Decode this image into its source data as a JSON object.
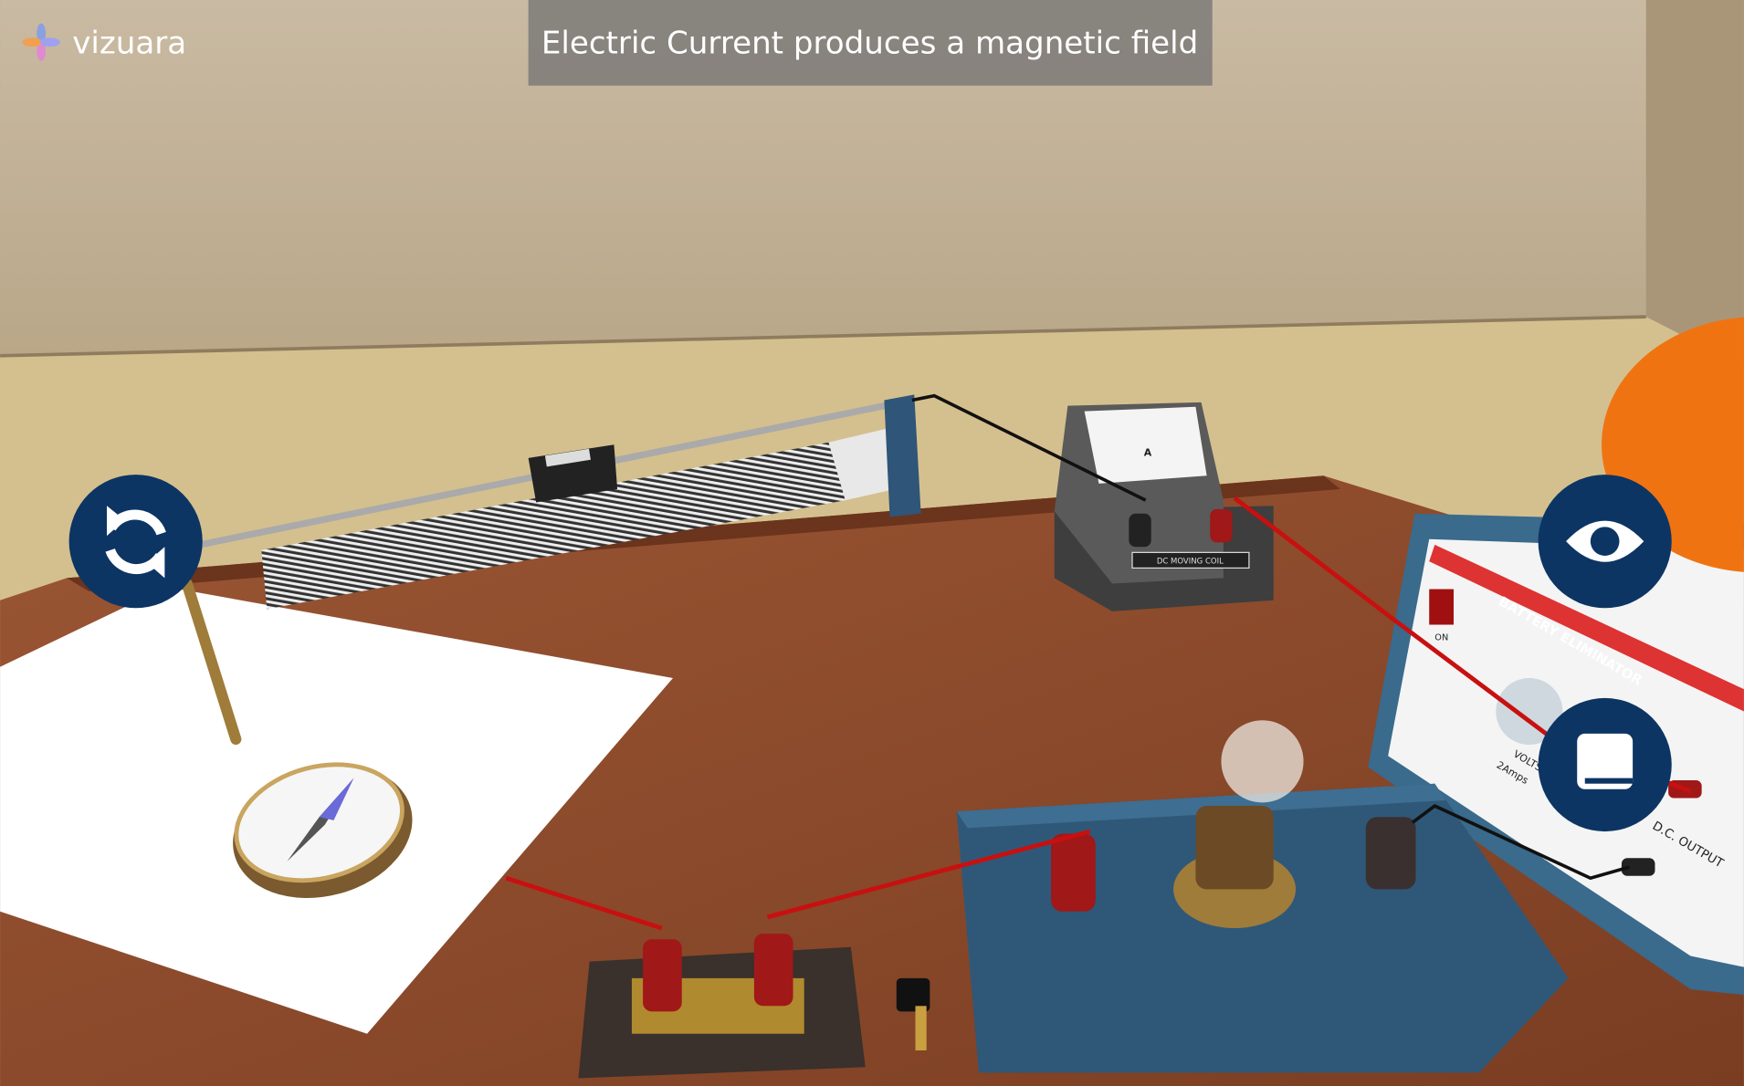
{
  "header": {
    "logo": "vizuara",
    "title": "Electric Current produces a magnetic field"
  },
  "equipment": {
    "battery_eliminator": "BATTERY ELIMINATOR",
    "switch": "ON",
    "volts": "VOLTS",
    "amps": "2Amps",
    "output": "D.C. OUTPUT",
    "ammeter": "DC MOVING COIL",
    "ammeter_unit": "A"
  }
}
